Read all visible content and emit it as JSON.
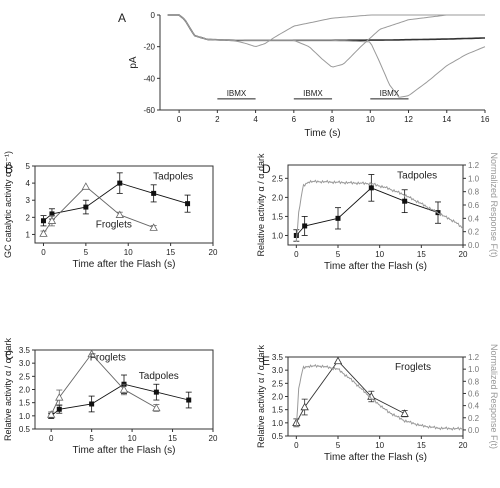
{
  "chart_data": [
    {
      "panel": "A",
      "type": "line",
      "xlabel": "Time (s)",
      "ylabel": "pA",
      "xlim": [
        -1,
        16
      ],
      "ylim": [
        -60,
        0
      ],
      "xticks": [
        0,
        2,
        4,
        6,
        8,
        10,
        12,
        14,
        16
      ],
      "yticks": [
        -60,
        -40,
        -20,
        0
      ],
      "annotations": [
        "IBMX",
        "IBMX",
        "IBMX"
      ],
      "ibmx_bars": [
        [
          2,
          4
        ],
        [
          6,
          8
        ],
        [
          10,
          12
        ]
      ],
      "series": [
        {
          "color": "#333333",
          "x": [
            -0.6,
            0,
            0.3,
            0.8,
            1.5,
            3,
            5,
            8,
            11,
            14,
            16
          ],
          "y": [
            0,
            0,
            -3,
            -13,
            -15.5,
            -16,
            -16,
            -16,
            -15.8,
            -15.2,
            -14.5
          ]
        },
        {
          "color": "#9a9a9a",
          "x": [
            -0.6,
            0,
            0.3,
            0.8,
            1.5,
            2.5,
            3,
            3.5,
            4,
            4.5,
            5,
            6,
            8,
            10,
            13,
            16
          ],
          "y": [
            0,
            0,
            -3,
            -13,
            -15.5,
            -16,
            -16.5,
            -18,
            -20,
            -18,
            -14,
            -7,
            -2,
            0,
            0,
            0
          ]
        },
        {
          "color": "#9a9a9a",
          "x": [
            -0.6,
            0,
            0.3,
            0.8,
            1.5,
            4,
            6,
            6.8,
            7.5,
            8,
            8.6,
            9.5,
            10.5,
            12,
            14,
            16
          ],
          "y": [
            0,
            0,
            -3,
            -13,
            -15.5,
            -16,
            -16,
            -20,
            -28,
            -33,
            -31,
            -20,
            -9,
            -3,
            0,
            0
          ]
        },
        {
          "color": "#9a9a9a",
          "x": [
            -0.6,
            0,
            0.3,
            0.8,
            1.5,
            4,
            8,
            10,
            10.5,
            11,
            11.5,
            12,
            13,
            14,
            15,
            16
          ],
          "y": [
            0,
            0,
            -3,
            -13,
            -15.5,
            -16,
            -16,
            -17,
            -30,
            -44,
            -52,
            -51,
            -42,
            -32,
            -25,
            -20
          ]
        }
      ]
    },
    {
      "panel": "B",
      "type": "line",
      "xlabel": "Time after the Flash (s)",
      "ylabel": "GC catalytic activity α (s⁻¹)",
      "xlim": [
        -1,
        20
      ],
      "ylim": [
        0.5,
        5
      ],
      "xticks": [
        0,
        5,
        10,
        15,
        20
      ],
      "yticks": [
        1,
        2,
        3,
        4,
        5
      ],
      "series": [
        {
          "name": "Tadpoles",
          "marker": "filled-square",
          "color": "#111111",
          "x": [
            0,
            1,
            5,
            9,
            13,
            17
          ],
          "y": [
            1.8,
            2.2,
            2.6,
            4.0,
            3.4,
            2.8
          ],
          "err": [
            0.3,
            0.3,
            0.4,
            0.6,
            0.5,
            0.5
          ]
        },
        {
          "name": "Froglets",
          "marker": "open-triangle",
          "color": "#666666",
          "x": [
            0,
            1,
            5,
            9,
            13
          ],
          "y": [
            1.05,
            1.8,
            3.8,
            2.15,
            1.4
          ],
          "err": [
            0.15,
            0.3,
            0,
            0.15,
            0.12
          ]
        }
      ]
    },
    {
      "panel": "C",
      "type": "line",
      "xlabel": "Time after the Flash (s)",
      "ylabel": "Relative activity α / α dark",
      "xlim": [
        -2,
        20
      ],
      "ylim": [
        0.5,
        3.5
      ],
      "xticks": [
        0,
        5,
        10,
        15,
        20
      ],
      "yticks": [
        0.5,
        1.0,
        1.5,
        2.0,
        2.5,
        3.0,
        3.5
      ],
      "series": [
        {
          "name": "Tadpoles",
          "marker": "filled-square",
          "color": "#111111",
          "x": [
            0,
            1,
            5,
            9,
            13,
            17
          ],
          "y": [
            1.0,
            1.25,
            1.45,
            2.2,
            1.9,
            1.6
          ],
          "err": [
            0.1,
            0.15,
            0.3,
            0.35,
            0.3,
            0.3
          ]
        },
        {
          "name": "Froglets",
          "marker": "open-triangle",
          "color": "#666666",
          "x": [
            0,
            1,
            5,
            9,
            13
          ],
          "y": [
            1.05,
            1.7,
            3.35,
            2.0,
            1.3
          ],
          "err": [
            0.1,
            0.28,
            0,
            0.2,
            0.13
          ]
        }
      ]
    },
    {
      "panel": "D",
      "type": "line",
      "xlabel": "Time after the Flash (s)",
      "ylabel": "Relative activity α / α dark",
      "y2label": "Normalized Response F(t)",
      "xlim": [
        -1,
        20
      ],
      "ylim": [
        0.75,
        2.85
      ],
      "y2lim": [
        0.0,
        1.2
      ],
      "xticks": [
        0,
        5,
        10,
        15,
        20
      ],
      "yticks": [
        1.0,
        1.5,
        2.0,
        2.5
      ],
      "y2ticks": [
        0.0,
        0.2,
        0.4,
        0.6,
        0.8,
        1.0,
        1.2
      ],
      "annotations": [
        "Tadpoles"
      ],
      "series": [
        {
          "name": "Tadpoles",
          "marker": "filled-square",
          "color": "#111111",
          "x": [
            0,
            1,
            5,
            9,
            13,
            17
          ],
          "y": [
            1.0,
            1.25,
            1.45,
            2.25,
            1.9,
            1.6
          ],
          "err": [
            0.15,
            0.25,
            0.28,
            0.35,
            0.3,
            0.28
          ]
        },
        {
          "name": "F(t)",
          "axis": "y2",
          "color": "#999999",
          "x": [
            0,
            0.3,
            0.8,
            1.5,
            3,
            5,
            7,
            9,
            11,
            13,
            15,
            17,
            19,
            20
          ],
          "y": [
            0.05,
            0.5,
            0.88,
            0.95,
            0.95,
            0.94,
            0.93,
            0.92,
            0.85,
            0.75,
            0.62,
            0.48,
            0.35,
            0.25
          ]
        }
      ]
    },
    {
      "panel": "E",
      "type": "line",
      "xlabel": "Time after the Flash (s)",
      "ylabel": "Relative activity α / α dark",
      "y2label": "Normalized Response F(t)",
      "xlim": [
        -1,
        20
      ],
      "ylim": [
        0.5,
        3.5
      ],
      "y2lim": [
        -0.1,
        1.2
      ],
      "xticks": [
        0,
        5,
        10,
        15,
        20
      ],
      "yticks": [
        0.5,
        1.0,
        1.5,
        2.0,
        2.5,
        3.0,
        3.5
      ],
      "y2ticks": [
        0.0,
        0.2,
        0.4,
        0.6,
        0.8,
        1.0,
        1.2
      ],
      "annotations": [
        "Froglets"
      ],
      "series": [
        {
          "name": "Froglets",
          "marker": "open-triangle",
          "color": "#333333",
          "x": [
            0,
            1,
            5,
            9,
            13
          ],
          "y": [
            1.0,
            1.6,
            3.35,
            2.0,
            1.35
          ],
          "err": [
            0.15,
            0.3,
            0,
            0.2,
            0.12
          ]
        },
        {
          "name": "F(t)",
          "axis": "y2",
          "color": "#999999",
          "x": [
            0,
            0.3,
            0.8,
            1.5,
            3,
            5,
            7,
            9,
            11,
            13,
            15,
            17,
            19,
            20
          ],
          "y": [
            0.05,
            0.7,
            1.02,
            1.05,
            1.05,
            1.0,
            0.78,
            0.52,
            0.3,
            0.15,
            0.07,
            0.03,
            0.02,
            0.02
          ]
        }
      ]
    }
  ]
}
